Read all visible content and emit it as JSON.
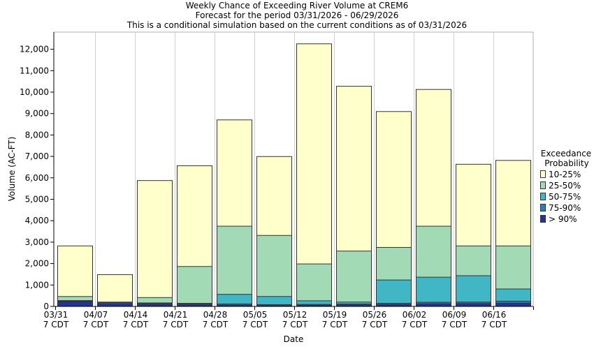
{
  "chart_data": {
    "type": "bar",
    "stacked": true,
    "title": [
      "Weekly Chance of Exceeding River Volume at CREM6",
      "Forecast for the period 03/31/2026 - 06/29/2026",
      "This is a conditional simulation based on the current conditions as of 03/31/2026"
    ],
    "xlabel": "Date",
    "ylabel": "Volume (AC-FT)",
    "ylim": [
      0,
      12800
    ],
    "yticks": [
      0,
      1000,
      2000,
      3000,
      4000,
      5000,
      6000,
      7000,
      8000,
      9000,
      10000,
      11000,
      12000
    ],
    "ytick_labels": [
      "0",
      "1,000",
      "2,000",
      "3,000",
      "4,000",
      "5,000",
      "6,000",
      "7,000",
      "8,000",
      "9,000",
      "10,000",
      "11,000",
      "12,000"
    ],
    "grid": "vertical",
    "categories": [
      [
        "03/31",
        "7 CDT"
      ],
      [
        "04/07",
        "7 CDT"
      ],
      [
        "04/14",
        "7 CDT"
      ],
      [
        "04/21",
        "7 CDT"
      ],
      [
        "04/28",
        "7 CDT"
      ],
      [
        "05/05",
        "7 CDT"
      ],
      [
        "05/12",
        "7 CDT"
      ],
      [
        "05/19",
        "7 CDT"
      ],
      [
        "05/26",
        "7 CDT"
      ],
      [
        "06/02",
        "7 CDT"
      ],
      [
        "06/09",
        "7 CDT"
      ],
      [
        "06/16",
        "7 CDT"
      ]
    ],
    "levels": {
      "gt90": [
        240,
        150,
        110,
        90,
        80,
        60,
        70,
        90,
        110,
        140,
        150,
        170
      ],
      "p75_90": [
        260,
        200,
        150,
        130,
        130,
        100,
        110,
        130,
        160,
        210,
        220,
        260
      ],
      "p50_75": [
        290,
        210,
        180,
        160,
        580,
        480,
        280,
        220,
        1250,
        1380,
        1450,
        830
      ],
      "p25_50": [
        480,
        220,
        430,
        1880,
        3760,
        3330,
        2000,
        2600,
        2770,
        3760,
        2840,
        2840
      ],
      "p10_25": [
        2840,
        1500,
        5890,
        6580,
        8720,
        7010,
        12270,
        10290,
        9110,
        10140,
        6650,
        6830
      ]
    },
    "legend": {
      "title": [
        "Exceedance",
        "Probability"
      ],
      "placement": "right",
      "entries": [
        {
          "label": "10-25%",
          "color": "#ffffcc"
        },
        {
          "label": "25-50%",
          "color": "#a1dab4"
        },
        {
          "label": "50-75%",
          "color": "#41b6c4"
        },
        {
          "label": "75-90%",
          "color": "#2c7fb8"
        },
        {
          "label": "> 90%",
          "color": "#253494"
        }
      ]
    },
    "series_order_bottom_to_top": [
      "gt90",
      "p75_90",
      "p50_75",
      "p25_50",
      "p10_25"
    ],
    "series_colors": {
      "gt90": "#253494",
      "p75_90": "#2c7fb8",
      "p50_75": "#41b6c4",
      "p25_50": "#a1dab4",
      "p10_25": "#ffffcc"
    }
  }
}
